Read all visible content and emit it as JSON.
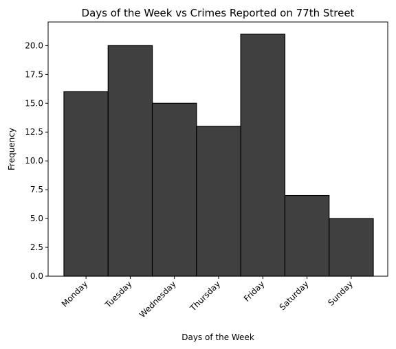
{
  "chart_data": {
    "type": "bar",
    "title": "Days of the Week vs Crimes Reported on 77th Street",
    "xlabel": "Days of the Week",
    "ylabel": "Frequency",
    "categories": [
      "Monday",
      "Tuesday",
      "Wednesday",
      "Thursday",
      "Friday",
      "Saturday",
      "Sunday"
    ],
    "values": [
      16,
      20,
      15,
      13,
      21,
      7,
      5
    ],
    "ylim": [
      0,
      22.05
    ],
    "yticks": [
      "0.0",
      "2.5",
      "5.0",
      "7.5",
      "10.0",
      "12.5",
      "15.0",
      "17.5",
      "20.0"
    ],
    "ytick_values": [
      0,
      2.5,
      5,
      7.5,
      10,
      12.5,
      15,
      17.5,
      20
    ],
    "grid": false,
    "legend": "none",
    "bar_color": "#404040",
    "edge_color": "#000000"
  }
}
